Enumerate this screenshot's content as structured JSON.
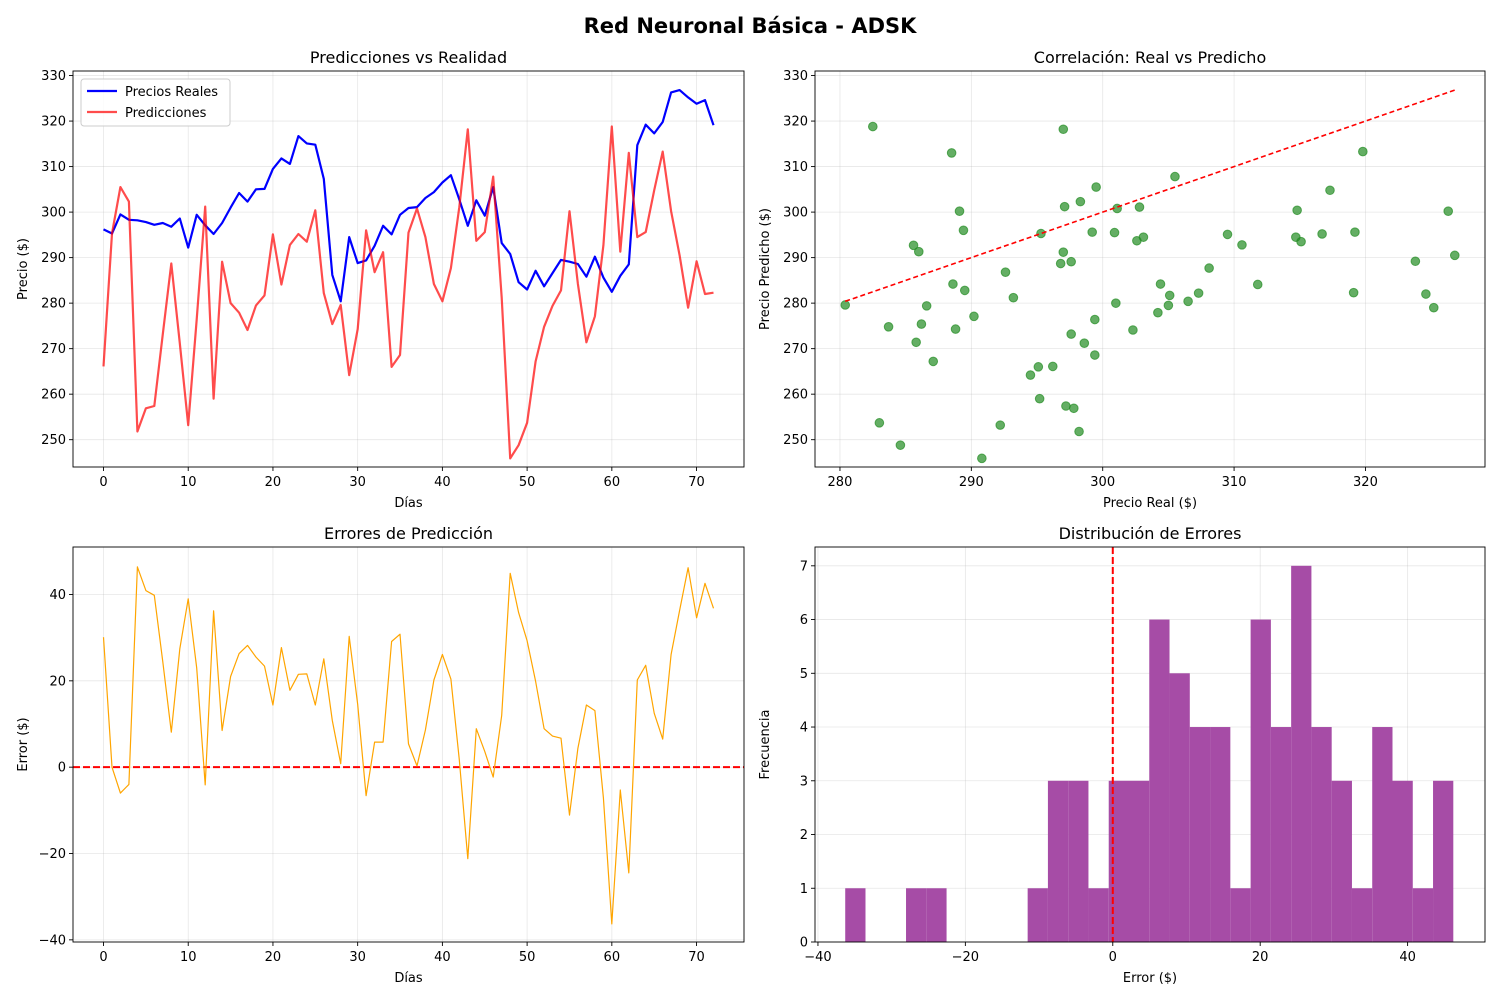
{
  "figure_title": "Red Neuronal Básica - ADSK",
  "chart_data": [
    {
      "type": "line",
      "title": "Predicciones vs Realidad",
      "xlabel": "Días",
      "ylabel": "Precio ($)",
      "xlim": [
        -3.6,
        75.6
      ],
      "ylim": [
        244,
        331
      ],
      "xticks": [
        0,
        10,
        20,
        30,
        40,
        50,
        60,
        70
      ],
      "yticks": [
        250,
        260,
        270,
        280,
        290,
        300,
        310,
        320,
        330
      ],
      "grid": true,
      "legend": "top-left",
      "series": [
        {
          "name": "Precios Reales",
          "color": "#0000ff",
          "x": [
            0,
            1,
            2,
            3,
            4,
            5,
            6,
            7,
            8,
            9,
            10,
            11,
            12,
            13,
            14,
            15,
            16,
            17,
            18,
            19,
            20,
            21,
            22,
            23,
            24,
            25,
            26,
            27,
            28,
            29,
            30,
            31,
            32,
            33,
            34,
            35,
            36,
            37,
            38,
            39,
            40,
            41,
            42,
            43,
            44,
            45,
            46,
            47,
            48,
            49,
            50,
            51,
            52,
            53,
            54,
            55,
            56,
            57,
            58,
            59,
            60,
            61,
            62,
            63,
            64,
            65,
            66,
            67,
            68,
            69,
            70,
            71,
            72
          ],
          "y": [
            296.2,
            295.3,
            299.5,
            298.3,
            298.2,
            297.8,
            297.2,
            297.6,
            296.8,
            298.6,
            292.2,
            299.4,
            297.1,
            295.2,
            297.6,
            301.0,
            304.2,
            302.3,
            305.0,
            305.1,
            309.5,
            311.8,
            310.6,
            316.7,
            315.1,
            314.8,
            307.3,
            286.2,
            280.4,
            294.5,
            288.8,
            289.4,
            292.6,
            297.0,
            295.1,
            299.4,
            300.9,
            301.1,
            303.1,
            304.4,
            306.5,
            308.1,
            302.8,
            297.0,
            302.6,
            299.2,
            305.5,
            293.2,
            290.8,
            284.6,
            283.0,
            287.1,
            283.7,
            286.6,
            289.5,
            289.1,
            288.6,
            285.8,
            290.2,
            285.6,
            282.5,
            286.0,
            288.5,
            314.7,
            319.2,
            317.3,
            319.8,
            326.3,
            326.8,
            325.2,
            323.8,
            324.6,
            319.1
          ]
        },
        {
          "name": "Predicciones",
          "color": "#ff0000",
          "x": [
            0,
            1,
            2,
            3,
            4,
            5,
            6,
            7,
            8,
            9,
            10,
            11,
            12,
            13,
            14,
            15,
            16,
            17,
            18,
            19,
            20,
            21,
            22,
            23,
            24,
            25,
            26,
            27,
            28,
            29,
            30,
            31,
            32,
            33,
            34,
            35,
            36,
            37,
            38,
            39,
            40,
            41,
            42,
            43,
            44,
            45,
            46,
            47,
            48,
            49,
            50,
            51,
            52,
            53,
            54,
            55,
            56,
            57,
            58,
            59,
            60,
            61,
            62,
            63,
            64,
            65,
            66,
            67,
            68,
            69,
            70,
            71,
            72
          ],
          "y": [
            266.1,
            295.3,
            305.5,
            302.3,
            251.8,
            256.9,
            257.4,
            273.2,
            288.7,
            271.2,
            253.2,
            276.4,
            301.2,
            259.0,
            289.1,
            280.0,
            277.9,
            274.1,
            279.5,
            281.7,
            295.1,
            284.1,
            292.8,
            295.2,
            293.5,
            300.4,
            282.2,
            275.4,
            279.6,
            264.2,
            274.3,
            296.0,
            286.8,
            291.2,
            266.0,
            268.6,
            295.5,
            300.8,
            294.5,
            284.2,
            280.4,
            287.7,
            301.1,
            318.2,
            293.7,
            295.6,
            307.8,
            281.2,
            245.9,
            248.8,
            253.7,
            267.2,
            274.8,
            279.4,
            282.8,
            300.2,
            284.2,
            271.4,
            277.1,
            292.7,
            318.8,
            291.3,
            313.0,
            294.5,
            295.6,
            304.8,
            313.3,
            300.2,
            290.5,
            279.0,
            289.2,
            282.0,
            282.3
          ]
        }
      ]
    },
    {
      "type": "scatter",
      "title": "Correlación: Real vs Predicho",
      "xlabel": "Precio Real ($)",
      "ylabel": "Precio Predicho ($)",
      "xlim": [
        278.1,
        329.1
      ],
      "ylim": [
        244,
        331
      ],
      "xticks": [
        280,
        290,
        300,
        310,
        320
      ],
      "yticks": [
        250,
        260,
        270,
        280,
        290,
        300,
        310,
        320,
        330
      ],
      "grid": true,
      "point_color": "#228b22",
      "reference_line": {
        "x": [
          280.4,
          326.8
        ],
        "y": [
          280.4,
          326.8
        ],
        "color": "#ff0000",
        "style": "dashed"
      },
      "points": [
        [
          296.2,
          266.1
        ],
        [
          295.3,
          295.3
        ],
        [
          299.5,
          305.5
        ],
        [
          298.3,
          302.3
        ],
        [
          298.2,
          251.8
        ],
        [
          297.8,
          256.9
        ],
        [
          297.2,
          257.4
        ],
        [
          297.6,
          273.2
        ],
        [
          296.8,
          288.7
        ],
        [
          298.6,
          271.2
        ],
        [
          292.2,
          253.2
        ],
        [
          299.4,
          276.4
        ],
        [
          297.1,
          301.2
        ],
        [
          295.2,
          259.0
        ],
        [
          297.6,
          289.1
        ],
        [
          301.0,
          280.0
        ],
        [
          304.2,
          277.9
        ],
        [
          302.3,
          274.1
        ],
        [
          305.0,
          279.5
        ],
        [
          305.1,
          281.7
        ],
        [
          309.5,
          295.1
        ],
        [
          311.8,
          284.1
        ],
        [
          310.6,
          292.8
        ],
        [
          316.7,
          295.2
        ],
        [
          315.1,
          293.5
        ],
        [
          314.8,
          300.4
        ],
        [
          307.3,
          282.2
        ],
        [
          286.2,
          275.4
        ],
        [
          280.4,
          279.6
        ],
        [
          294.5,
          264.2
        ],
        [
          288.8,
          274.3
        ],
        [
          289.4,
          296.0
        ],
        [
          292.6,
          286.8
        ],
        [
          297.0,
          291.2
        ],
        [
          295.1,
          266.0
        ],
        [
          299.4,
          268.6
        ],
        [
          300.9,
          295.5
        ],
        [
          301.1,
          300.8
        ],
        [
          303.1,
          294.5
        ],
        [
          304.4,
          284.2
        ],
        [
          306.5,
          280.4
        ],
        [
          308.1,
          287.7
        ],
        [
          302.8,
          301.1
        ],
        [
          297.0,
          318.2
        ],
        [
          302.6,
          293.7
        ],
        [
          299.2,
          295.6
        ],
        [
          305.5,
          307.8
        ],
        [
          293.2,
          281.2
        ],
        [
          290.8,
          245.9
        ],
        [
          284.6,
          248.8
        ],
        [
          283.0,
          253.7
        ],
        [
          287.1,
          267.2
        ],
        [
          283.7,
          274.8
        ],
        [
          286.6,
          279.4
        ],
        [
          289.5,
          282.8
        ],
        [
          289.1,
          300.2
        ],
        [
          288.6,
          284.2
        ],
        [
          285.8,
          271.4
        ],
        [
          290.2,
          277.1
        ],
        [
          285.6,
          292.7
        ],
        [
          282.5,
          318.8
        ],
        [
          286.0,
          291.3
        ],
        [
          288.5,
          313.0
        ],
        [
          314.7,
          294.5
        ],
        [
          319.2,
          295.6
        ],
        [
          317.3,
          304.8
        ],
        [
          319.8,
          313.3
        ],
        [
          326.3,
          300.2
        ],
        [
          326.8,
          290.5
        ],
        [
          325.2,
          279.0
        ],
        [
          323.8,
          289.2
        ],
        [
          324.6,
          282.0
        ],
        [
          319.1,
          282.3
        ]
      ]
    },
    {
      "type": "line",
      "title": "Errores de Predicción",
      "xlabel": "Días",
      "ylabel": "Error ($)",
      "xlim": [
        -3.6,
        75.6
      ],
      "ylim": [
        -40.5,
        51
      ],
      "xticks": [
        0,
        10,
        20,
        30,
        40,
        50,
        60,
        70
      ],
      "yticks": [
        -40,
        -20,
        0,
        20,
        40
      ],
      "grid": true,
      "zero_line": {
        "y": 0,
        "color": "#ff0000",
        "style": "dashed"
      },
      "series": [
        {
          "name": "",
          "color": "#ffa500",
          "x": [
            0,
            1,
            2,
            3,
            4,
            5,
            6,
            7,
            8,
            9,
            10,
            11,
            12,
            13,
            14,
            15,
            16,
            17,
            18,
            19,
            20,
            21,
            22,
            23,
            24,
            25,
            26,
            27,
            28,
            29,
            30,
            31,
            32,
            33,
            34,
            35,
            36,
            37,
            38,
            39,
            40,
            41,
            42,
            43,
            44,
            45,
            46,
            47,
            48,
            49,
            50,
            51,
            52,
            53,
            54,
            55,
            56,
            57,
            58,
            59,
            60,
            61,
            62,
            63,
            64,
            65,
            66,
            67,
            68,
            69,
            70,
            71,
            72
          ],
          "y": [
            30.1,
            0.0,
            -6.0,
            -4.0,
            46.4,
            40.9,
            39.8,
            24.4,
            8.1,
            27.4,
            39.0,
            23.0,
            -4.1,
            36.2,
            8.5,
            21.0,
            26.3,
            28.2,
            25.5,
            23.4,
            14.4,
            27.7,
            17.8,
            21.5,
            21.6,
            14.4,
            25.1,
            10.8,
            0.8,
            30.3,
            14.5,
            -6.6,
            5.8,
            5.8,
            29.1,
            30.8,
            5.4,
            0.3,
            8.6,
            20.2,
            26.1,
            20.4,
            1.7,
            -21.2,
            8.9,
            3.6,
            -2.3,
            12.0,
            44.9,
            35.8,
            29.3,
            19.9,
            8.9,
            7.2,
            6.7,
            -11.1,
            4.4,
            14.4,
            13.1,
            -7.1,
            -36.3,
            -5.3,
            -24.5,
            20.2,
            23.6,
            12.5,
            6.5,
            26.1,
            36.3,
            46.2,
            34.6,
            42.6,
            36.8
          ]
        }
      ]
    },
    {
      "type": "bar",
      "title": "Distribución de Errores",
      "xlabel": "Error ($)",
      "ylabel": "Frecuencia",
      "xlim": [
        -40.4,
        50.5
      ],
      "ylim": [
        0,
        7.35
      ],
      "xticks": [
        -40,
        -20,
        0,
        20,
        40
      ],
      "yticks": [
        0,
        1,
        2,
        3,
        4,
        5,
        6,
        7
      ],
      "grid": true,
      "bar_color": "#a64ca6",
      "zero_line": {
        "x": 0,
        "color": "#ff0000",
        "style": "dashed"
      },
      "bins": [
        -36.3,
        -33.55,
        -30.8,
        -28.05,
        -25.3,
        -22.55,
        -19.8,
        -17.05,
        -14.3,
        -11.55,
        -8.8,
        -6.05,
        -3.3,
        -0.55,
        2.2,
        4.95,
        7.7,
        10.45,
        13.2,
        15.95,
        18.7,
        21.45,
        24.2,
        26.95,
        29.7,
        32.45,
        35.2,
        37.95,
        40.7,
        43.45,
        46.2
      ],
      "counts": [
        1,
        0,
        0,
        1,
        1,
        0,
        0,
        0,
        0,
        1,
        3,
        3,
        1,
        3,
        3,
        6,
        5,
        4,
        4,
        1,
        6,
        4,
        7,
        4,
        3,
        1,
        4,
        3,
        1,
        3
      ]
    }
  ]
}
